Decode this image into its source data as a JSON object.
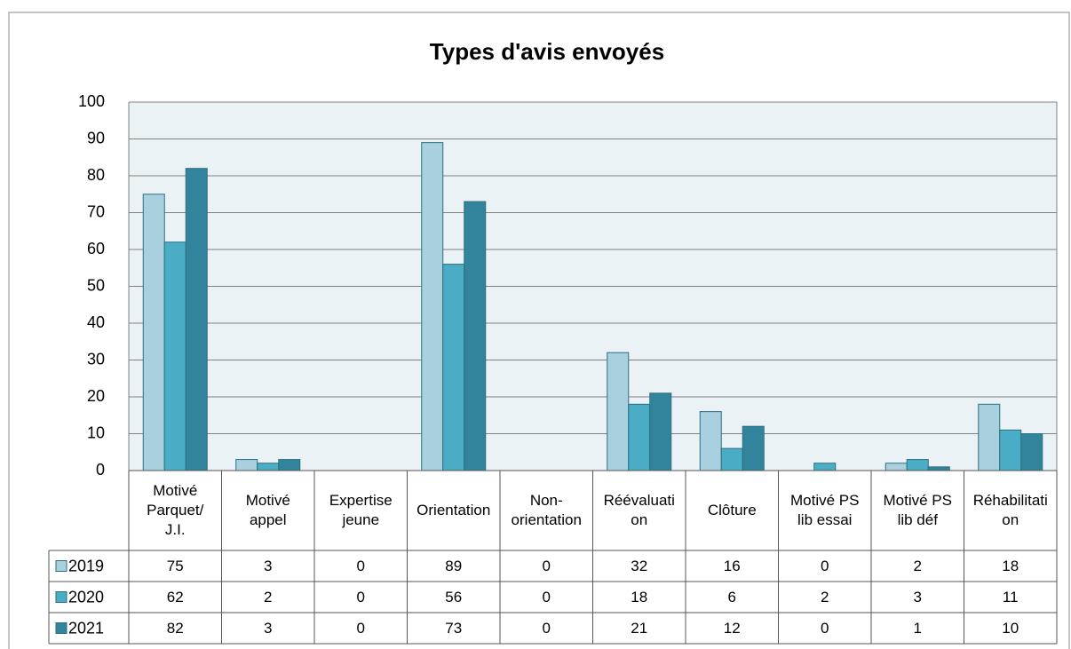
{
  "chart_data": {
    "type": "bar",
    "title": "Types d'avis envoyés",
    "categories": [
      "Motivé Parquet/ J.I.",
      "Motivé appel",
      "Expertise jeune",
      "Orientation",
      "Non-orientation",
      "Réévaluation",
      "Clôture",
      "Motivé PS lib essai",
      "Motivé PS lib déf",
      "Réhabilitation"
    ],
    "series": [
      {
        "name": "2019",
        "color": "#a9d0de",
        "values": [
          75,
          3,
          0,
          89,
          0,
          32,
          16,
          0,
          2,
          18
        ]
      },
      {
        "name": "2020",
        "color": "#4bacc6",
        "values": [
          62,
          2,
          0,
          56,
          0,
          18,
          6,
          2,
          3,
          11
        ]
      },
      {
        "name": "2021",
        "color": "#31849b",
        "values": [
          82,
          3,
          0,
          73,
          0,
          21,
          12,
          0,
          1,
          10
        ]
      }
    ],
    "ylim": [
      0,
      100
    ],
    "yticks": [
      0,
      10,
      20,
      30,
      40,
      50,
      60,
      70,
      80,
      90,
      100
    ],
    "grid": true,
    "legend": "table"
  }
}
